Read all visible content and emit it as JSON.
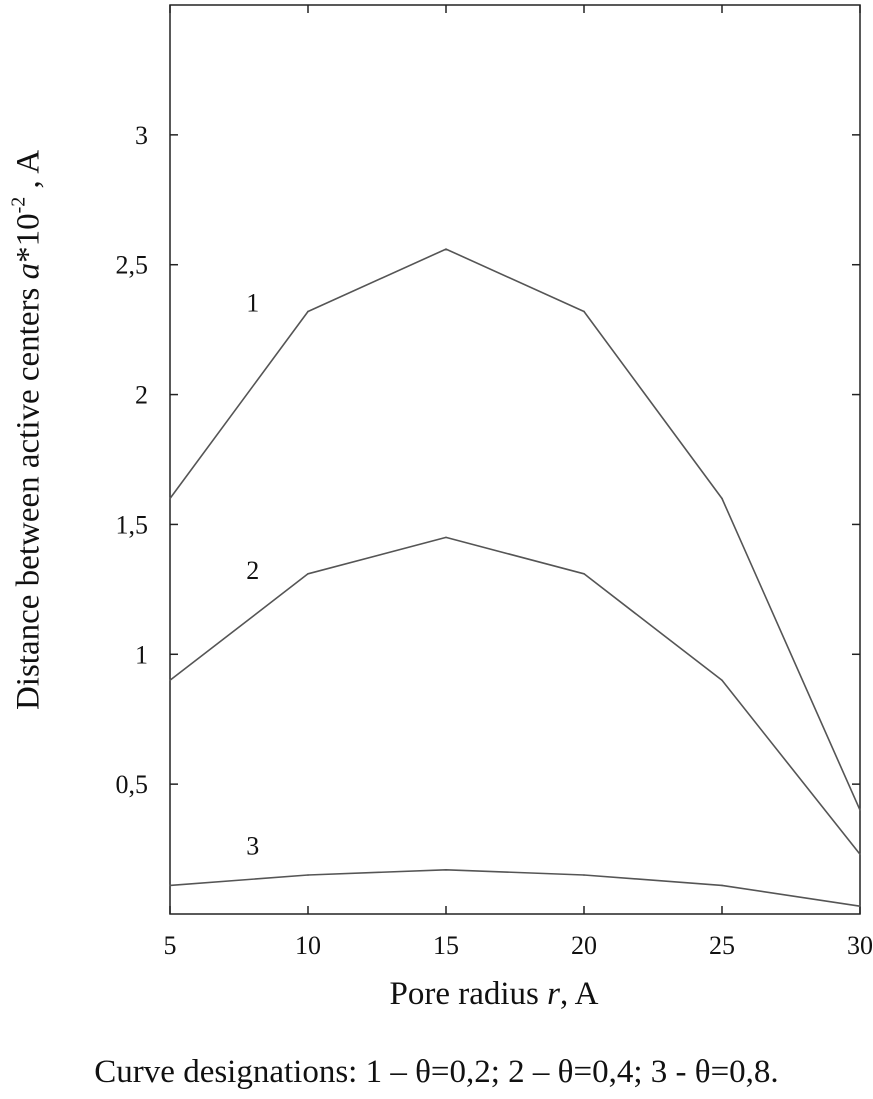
{
  "chart_data": {
    "type": "line",
    "title": "",
    "xlabel_prefix": "Pore radius ",
    "xlabel_var": "r",
    "xlabel_suffix": ", A",
    "ylabel_prefix": "Distance between active centers ",
    "ylabel_var": "a",
    "ylabel_mid": "*10",
    "ylabel_exp": "-2",
    "ylabel_suffix": " , A",
    "xlim": [
      5,
      30
    ],
    "ylim": [
      0,
      3.5
    ],
    "xticks": [
      5,
      10,
      15,
      20,
      25,
      30
    ],
    "xtick_labels": [
      "5",
      "10",
      "15",
      "20",
      "25",
      "30"
    ],
    "yticks": [
      0.5,
      1,
      1.5,
      2,
      2.5,
      3
    ],
    "ytick_labels": [
      "0,5",
      "1",
      "1,5",
      "2",
      "2,5",
      "3"
    ],
    "grid": false,
    "x": [
      5,
      10,
      15,
      20,
      25,
      30
    ],
    "series": [
      {
        "name": "1",
        "values": [
          1.6,
          2.32,
          2.56,
          2.32,
          1.6,
          0.4
        ],
        "label_at": [
          8,
          2.32
        ]
      },
      {
        "name": "2",
        "values": [
          0.9,
          1.31,
          1.45,
          1.31,
          0.9,
          0.23
        ],
        "label_at": [
          8,
          1.29
        ]
      },
      {
        "name": "3",
        "values": [
          0.11,
          0.15,
          0.17,
          0.15,
          0.11,
          0.03
        ],
        "label_at": [
          8,
          0.23
        ]
      }
    ],
    "line_color": "#555555",
    "caption": "Curve designations: 1 – θ=0,2; 2 – θ=0,4; 3 - θ=0,8."
  }
}
